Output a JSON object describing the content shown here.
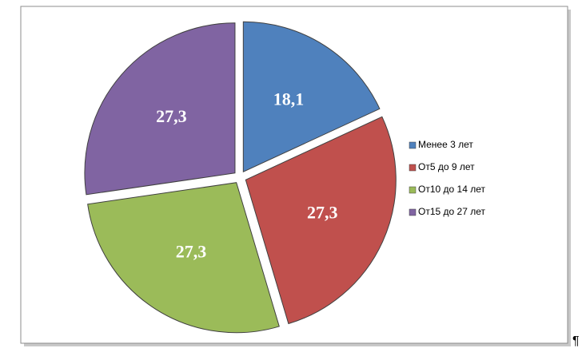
{
  "chart_data": {
    "type": "pie",
    "categories": [
      "Менее 3 лет",
      "От5  до 9 лет",
      "От10  до 14 лет",
      "От15  до 27 лет"
    ],
    "values": [
      18.1,
      27.3,
      27.3,
      27.3
    ],
    "value_labels": [
      "18,1",
      "27,3",
      "27,3",
      "27,3"
    ],
    "colors": [
      "#4f81bd",
      "#c0504d",
      "#9bbb59",
      "#8064a2"
    ],
    "legend": "right"
  },
  "paragraph_mark": "¶"
}
